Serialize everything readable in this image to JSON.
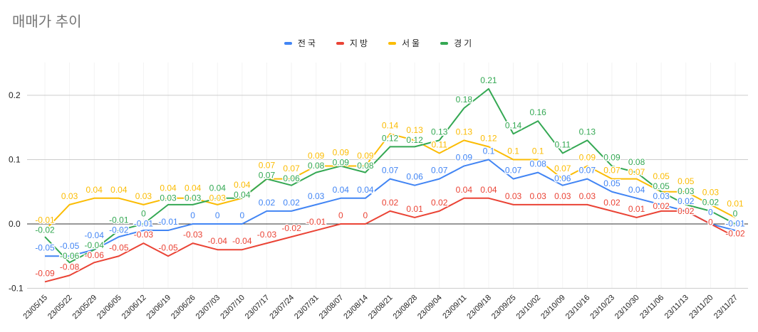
{
  "chart_data": {
    "type": "line",
    "title": "매매가 추이",
    "xlabel": "",
    "ylabel": "",
    "ylim": [
      -0.1,
      0.25
    ],
    "yticks": [
      "-0.1",
      "0.0",
      "0.1",
      "0.2"
    ],
    "grid": true,
    "legend_position": "top",
    "categories": [
      "23/05/15",
      "23/05/22",
      "23/05/29",
      "23/06/05",
      "23/06/12",
      "23/06/19",
      "23/06/26",
      "23/07/03",
      "23/07/10",
      "23/07/17",
      "23/07/24",
      "23/07/31",
      "23/08/07",
      "23/08/14",
      "23/08/21",
      "23/08/28",
      "23/09/04",
      "23/09/11",
      "23/09/18",
      "23/09/25",
      "23/10/02",
      "23/10/09",
      "23/10/16",
      "23/10/23",
      "23/10/30",
      "23/11/06",
      "23/11/13",
      "23/11/20",
      "23/11/27"
    ],
    "series": [
      {
        "name": "전국",
        "color": "#4285F4",
        "values": [
          -0.05,
          -0.05,
          -0.04,
          -0.02,
          -0.01,
          -0.01,
          0,
          0,
          0,
          0.02,
          0.02,
          0.03,
          0.04,
          0.04,
          0.07,
          0.06,
          0.07,
          0.09,
          0.1,
          0.07,
          0.08,
          0.06,
          0.07,
          0.05,
          0.04,
          0.03,
          0.02,
          0,
          -0.01
        ]
      },
      {
        "name": "지방",
        "color": "#EA4335",
        "values": [
          -0.09,
          -0.08,
          -0.06,
          -0.05,
          -0.03,
          -0.05,
          -0.03,
          -0.04,
          -0.04,
          -0.03,
          -0.02,
          -0.01,
          0,
          0,
          0.02,
          0.01,
          0.02,
          0.04,
          0.04,
          0.03,
          0.03,
          0.03,
          0.03,
          0.02,
          0.01,
          0.02,
          0.02,
          0,
          -0.02
        ]
      },
      {
        "name": "서울",
        "color": "#FBBC04",
        "values": [
          -0.01,
          0.03,
          0.04,
          0.04,
          0.03,
          0.04,
          0.04,
          0.03,
          0.04,
          0.07,
          0.07,
          0.09,
          0.09,
          0.09,
          0.14,
          0.13,
          0.11,
          0.13,
          0.12,
          0.1,
          0.1,
          0.07,
          0.09,
          0.07,
          0.07,
          0.05,
          0.05,
          0.03,
          0.01
        ]
      },
      {
        "name": "경기",
        "color": "#34A853",
        "values": [
          -0.02,
          -0.06,
          -0.04,
          -0.01,
          0,
          0.03,
          0.03,
          0.04,
          0.04,
          0.07,
          0.06,
          0.08,
          0.09,
          0.08,
          0.12,
          0.12,
          0.13,
          0.18,
          0.21,
          0.14,
          0.16,
          0.11,
          0.13,
          0.09,
          0.08,
          0.05,
          0.03,
          0.02,
          0
        ]
      }
    ]
  }
}
